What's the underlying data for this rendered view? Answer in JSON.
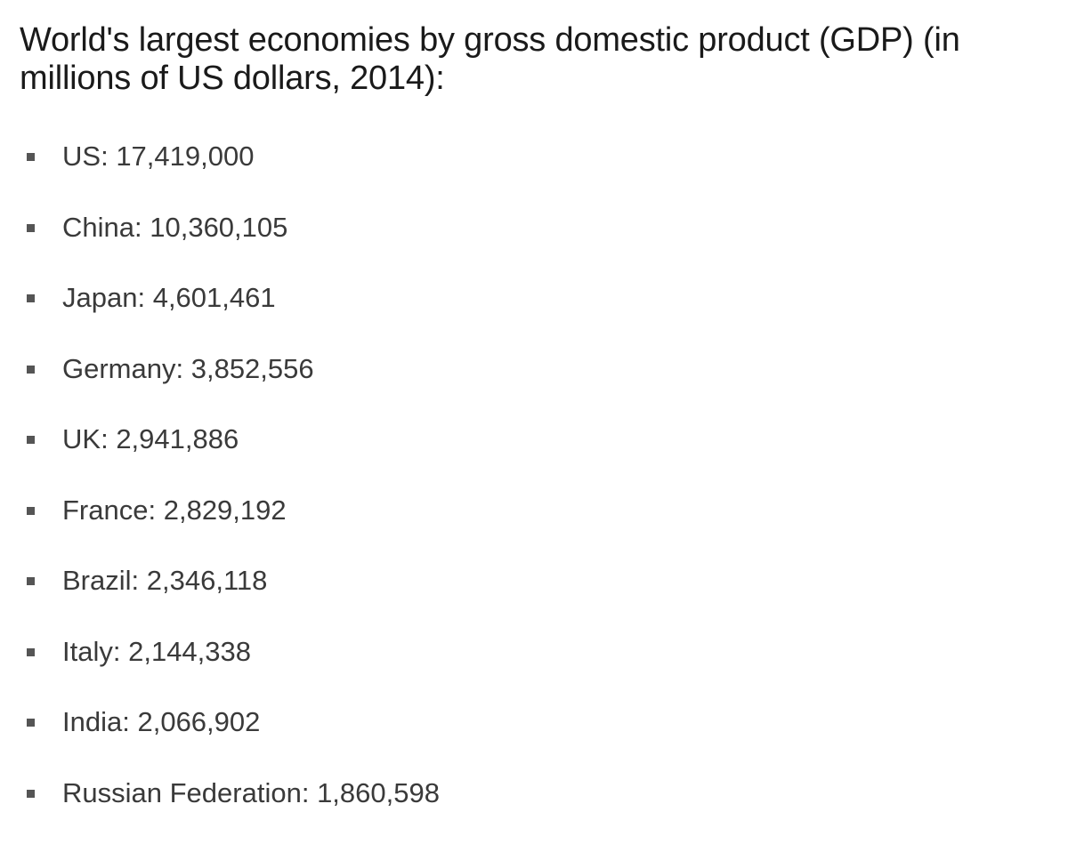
{
  "heading": "World's largest economies by gross domestic product (GDP) (in millions of US dollars, 2014):",
  "items": [
    {
      "country": "US",
      "gdp": "17,419,000"
    },
    {
      "country": "China",
      "gdp": "10,360,105"
    },
    {
      "country": "Japan",
      "gdp": "4,601,461"
    },
    {
      "country": "Germany",
      "gdp": "3,852,556"
    },
    {
      "country": "UK",
      "gdp": "2,941,886"
    },
    {
      "country": "France",
      "gdp": "2,829,192"
    },
    {
      "country": "Brazil",
      "gdp": "2,346,118"
    },
    {
      "country": "Italy",
      "gdp": "2,144,338"
    },
    {
      "country": "India",
      "gdp": "2,066,902"
    },
    {
      "country": "Russian Federation",
      "gdp": "1,860,598"
    }
  ]
}
